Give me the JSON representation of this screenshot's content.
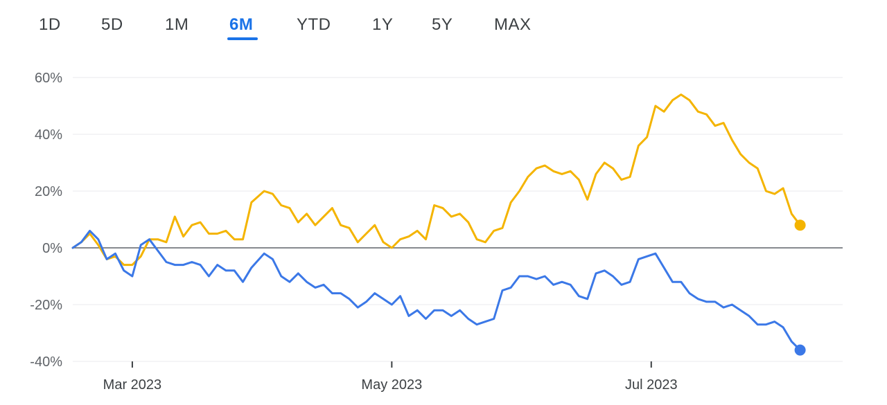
{
  "tabs": [
    {
      "label": "1D",
      "active": false
    },
    {
      "label": "5D",
      "active": false
    },
    {
      "label": "1M",
      "active": false
    },
    {
      "label": "6M",
      "active": true
    },
    {
      "label": "YTD",
      "active": false
    },
    {
      "label": "1Y",
      "active": false
    },
    {
      "label": "5Y",
      "active": false
    },
    {
      "label": "MAX",
      "active": false
    }
  ],
  "colors": {
    "accent": "#1a73e8",
    "series_yellow": "#f4b400",
    "series_blue": "#3b78e7",
    "gridline": "#e8eaed",
    "zero_line": "#5f6368"
  },
  "chart_data": {
    "type": "line",
    "title": "",
    "xlabel": "",
    "ylabel": "",
    "ylim": [
      -40,
      60
    ],
    "y_ticks": [
      60,
      40,
      20,
      0,
      -20,
      -40
    ],
    "y_tick_labels": [
      "60%",
      "40%",
      "20%",
      "0%",
      "-20%",
      "-40%"
    ],
    "x_ticks": [
      {
        "date": "2023-03-01",
        "label": "Mar 2023"
      },
      {
        "date": "2023-05-01",
        "label": "May 2023"
      },
      {
        "date": "2023-07-01",
        "label": "Jul 2023"
      }
    ],
    "x_range": [
      "2023-02-15",
      "2023-08-15"
    ],
    "grid": true,
    "series": [
      {
        "color": "#f4b400",
        "points": [
          [
            "2023-02-15",
            0
          ],
          [
            "2023-02-17",
            2
          ],
          [
            "2023-02-19",
            5
          ],
          [
            "2023-02-21",
            1
          ],
          [
            "2023-02-23",
            -4
          ],
          [
            "2023-02-25",
            -3
          ],
          [
            "2023-02-27",
            -6
          ],
          [
            "2023-03-01",
            -6
          ],
          [
            "2023-03-03",
            -3
          ],
          [
            "2023-03-05",
            3
          ],
          [
            "2023-03-07",
            3
          ],
          [
            "2023-03-09",
            2
          ],
          [
            "2023-03-11",
            11
          ],
          [
            "2023-03-13",
            4
          ],
          [
            "2023-03-15",
            8
          ],
          [
            "2023-03-17",
            9
          ],
          [
            "2023-03-19",
            5
          ],
          [
            "2023-03-21",
            5
          ],
          [
            "2023-03-23",
            6
          ],
          [
            "2023-03-25",
            3
          ],
          [
            "2023-03-27",
            3
          ],
          [
            "2023-03-29",
            16
          ],
          [
            "2023-04-01",
            20
          ],
          [
            "2023-04-03",
            19
          ],
          [
            "2023-04-05",
            15
          ],
          [
            "2023-04-07",
            14
          ],
          [
            "2023-04-09",
            9
          ],
          [
            "2023-04-11",
            12
          ],
          [
            "2023-04-13",
            8
          ],
          [
            "2023-04-15",
            11
          ],
          [
            "2023-04-17",
            14
          ],
          [
            "2023-04-19",
            8
          ],
          [
            "2023-04-21",
            7
          ],
          [
            "2023-04-23",
            2
          ],
          [
            "2023-04-25",
            5
          ],
          [
            "2023-04-27",
            8
          ],
          [
            "2023-04-29",
            2
          ],
          [
            "2023-05-01",
            0
          ],
          [
            "2023-05-03",
            3
          ],
          [
            "2023-05-05",
            4
          ],
          [
            "2023-05-07",
            6
          ],
          [
            "2023-05-09",
            3
          ],
          [
            "2023-05-11",
            15
          ],
          [
            "2023-05-13",
            14
          ],
          [
            "2023-05-15",
            11
          ],
          [
            "2023-05-17",
            12
          ],
          [
            "2023-05-19",
            9
          ],
          [
            "2023-05-21",
            3
          ],
          [
            "2023-05-23",
            2
          ],
          [
            "2023-05-25",
            6
          ],
          [
            "2023-05-27",
            7
          ],
          [
            "2023-05-29",
            16
          ],
          [
            "2023-05-31",
            20
          ],
          [
            "2023-06-02",
            25
          ],
          [
            "2023-06-04",
            28
          ],
          [
            "2023-06-06",
            29
          ],
          [
            "2023-06-08",
            27
          ],
          [
            "2023-06-10",
            26
          ],
          [
            "2023-06-12",
            27
          ],
          [
            "2023-06-14",
            24
          ],
          [
            "2023-06-16",
            17
          ],
          [
            "2023-06-18",
            26
          ],
          [
            "2023-06-20",
            30
          ],
          [
            "2023-06-22",
            28
          ],
          [
            "2023-06-24",
            24
          ],
          [
            "2023-06-26",
            25
          ],
          [
            "2023-06-28",
            36
          ],
          [
            "2023-06-30",
            39
          ],
          [
            "2023-07-02",
            50
          ],
          [
            "2023-07-04",
            48
          ],
          [
            "2023-07-06",
            52
          ],
          [
            "2023-07-08",
            54
          ],
          [
            "2023-07-10",
            52
          ],
          [
            "2023-07-12",
            48
          ],
          [
            "2023-07-14",
            47
          ],
          [
            "2023-07-16",
            43
          ],
          [
            "2023-07-18",
            44
          ],
          [
            "2023-07-20",
            38
          ],
          [
            "2023-07-22",
            33
          ],
          [
            "2023-07-24",
            30
          ],
          [
            "2023-07-26",
            28
          ],
          [
            "2023-07-28",
            20
          ],
          [
            "2023-07-30",
            19
          ],
          [
            "2023-08-01",
            21
          ],
          [
            "2023-08-03",
            12
          ],
          [
            "2023-08-05",
            8
          ]
        ]
      },
      {
        "color": "#3b78e7",
        "points": [
          [
            "2023-02-15",
            0
          ],
          [
            "2023-02-17",
            2
          ],
          [
            "2023-02-19",
            6
          ],
          [
            "2023-02-21",
            3
          ],
          [
            "2023-02-23",
            -4
          ],
          [
            "2023-02-25",
            -2
          ],
          [
            "2023-02-27",
            -8
          ],
          [
            "2023-03-01",
            -10
          ],
          [
            "2023-03-03",
            1
          ],
          [
            "2023-03-05",
            3
          ],
          [
            "2023-03-07",
            -1
          ],
          [
            "2023-03-09",
            -5
          ],
          [
            "2023-03-11",
            -6
          ],
          [
            "2023-03-13",
            -6
          ],
          [
            "2023-03-15",
            -5
          ],
          [
            "2023-03-17",
            -6
          ],
          [
            "2023-03-19",
            -10
          ],
          [
            "2023-03-21",
            -6
          ],
          [
            "2023-03-23",
            -8
          ],
          [
            "2023-03-25",
            -8
          ],
          [
            "2023-03-27",
            -12
          ],
          [
            "2023-03-29",
            -7
          ],
          [
            "2023-04-01",
            -2
          ],
          [
            "2023-04-03",
            -4
          ],
          [
            "2023-04-05",
            -10
          ],
          [
            "2023-04-07",
            -12
          ],
          [
            "2023-04-09",
            -9
          ],
          [
            "2023-04-11",
            -12
          ],
          [
            "2023-04-13",
            -14
          ],
          [
            "2023-04-15",
            -13
          ],
          [
            "2023-04-17",
            -16
          ],
          [
            "2023-04-19",
            -16
          ],
          [
            "2023-04-21",
            -18
          ],
          [
            "2023-04-23",
            -21
          ],
          [
            "2023-04-25",
            -19
          ],
          [
            "2023-04-27",
            -16
          ],
          [
            "2023-04-29",
            -18
          ],
          [
            "2023-05-01",
            -20
          ],
          [
            "2023-05-03",
            -17
          ],
          [
            "2023-05-05",
            -24
          ],
          [
            "2023-05-07",
            -22
          ],
          [
            "2023-05-09",
            -25
          ],
          [
            "2023-05-11",
            -22
          ],
          [
            "2023-05-13",
            -22
          ],
          [
            "2023-05-15",
            -24
          ],
          [
            "2023-05-17",
            -22
          ],
          [
            "2023-05-19",
            -25
          ],
          [
            "2023-05-21",
            -27
          ],
          [
            "2023-05-23",
            -26
          ],
          [
            "2023-05-25",
            -25
          ],
          [
            "2023-05-27",
            -15
          ],
          [
            "2023-05-29",
            -14
          ],
          [
            "2023-05-31",
            -10
          ],
          [
            "2023-06-02",
            -10
          ],
          [
            "2023-06-04",
            -11
          ],
          [
            "2023-06-06",
            -10
          ],
          [
            "2023-06-08",
            -13
          ],
          [
            "2023-06-10",
            -12
          ],
          [
            "2023-06-12",
            -13
          ],
          [
            "2023-06-14",
            -17
          ],
          [
            "2023-06-16",
            -18
          ],
          [
            "2023-06-18",
            -9
          ],
          [
            "2023-06-20",
            -8
          ],
          [
            "2023-06-22",
            -10
          ],
          [
            "2023-06-24",
            -13
          ],
          [
            "2023-06-26",
            -12
          ],
          [
            "2023-06-28",
            -4
          ],
          [
            "2023-06-30",
            -3
          ],
          [
            "2023-07-02",
            -2
          ],
          [
            "2023-07-04",
            -7
          ],
          [
            "2023-07-06",
            -12
          ],
          [
            "2023-07-08",
            -12
          ],
          [
            "2023-07-10",
            -16
          ],
          [
            "2023-07-12",
            -18
          ],
          [
            "2023-07-14",
            -19
          ],
          [
            "2023-07-16",
            -19
          ],
          [
            "2023-07-18",
            -21
          ],
          [
            "2023-07-20",
            -20
          ],
          [
            "2023-07-22",
            -22
          ],
          [
            "2023-07-24",
            -24
          ],
          [
            "2023-07-26",
            -27
          ],
          [
            "2023-07-28",
            -27
          ],
          [
            "2023-07-30",
            -26
          ],
          [
            "2023-08-01",
            -28
          ],
          [
            "2023-08-03",
            -33
          ],
          [
            "2023-08-05",
            -36
          ]
        ]
      }
    ]
  }
}
